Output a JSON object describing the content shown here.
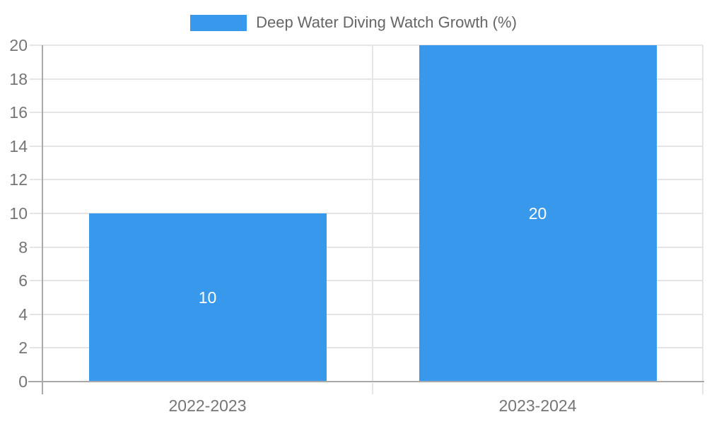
{
  "chart_data": {
    "type": "bar",
    "title": "Deep Water Diving Watch Growth (%)",
    "categories": [
      "2022-2023",
      "2023-2024"
    ],
    "values": [
      10,
      20
    ],
    "bar_labels": [
      "10",
      "20"
    ],
    "yticks": [
      0,
      2,
      4,
      6,
      8,
      10,
      12,
      14,
      16,
      18,
      20
    ],
    "ylim": [
      0,
      20
    ],
    "xlabel": "",
    "ylabel": "",
    "legend_position": "top-center",
    "grid": true,
    "colors": {
      "bar": "#3899ec",
      "grid": "#e5e5e5",
      "axis": "#a9a9a9",
      "tick_label": "#757575",
      "legend_text": "#666666",
      "data_label": "#ffffff",
      "background": "#ffffff"
    }
  }
}
